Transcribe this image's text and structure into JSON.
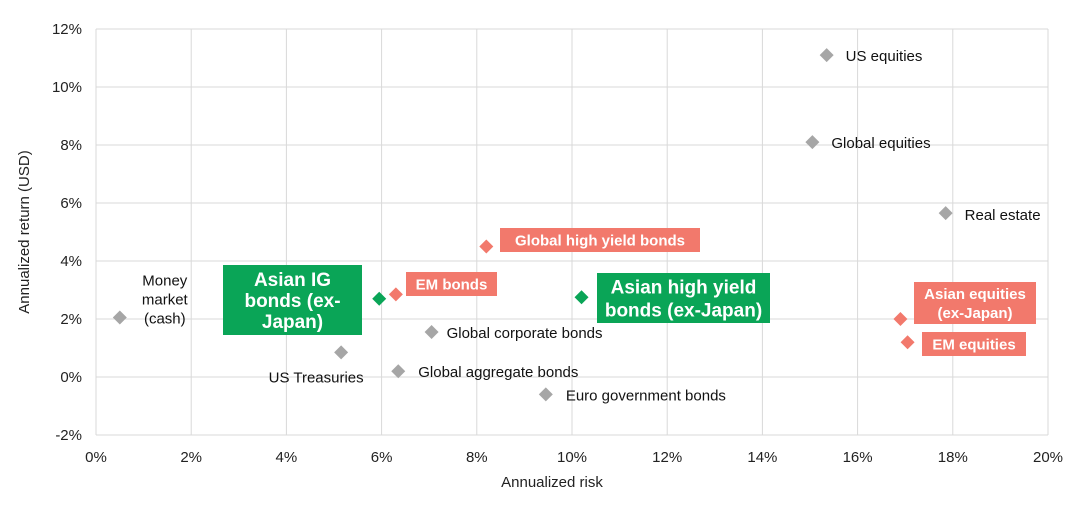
{
  "chart_data": {
    "type": "scatter",
    "xlabel": "Annualized risk",
    "ylabel": "Annualized return (USD)",
    "xlim": [
      0,
      20
    ],
    "ylim": [
      -2,
      12
    ],
    "x_ticks": [
      "0%",
      "2%",
      "4%",
      "6%",
      "8%",
      "10%",
      "12%",
      "14%",
      "16%",
      "18%",
      "20%"
    ],
    "y_ticks": [
      "-2%",
      "0%",
      "2%",
      "4%",
      "6%",
      "8%",
      "10%",
      "12%"
    ],
    "grid": true,
    "colors": {
      "gray": "#a6a6a6",
      "em": "#f2796c",
      "asian": "#0aa557",
      "grid": "#d9d9d9"
    },
    "points": [
      {
        "name": "US equities",
        "label_lines": [
          "US equities"
        ],
        "x": 15.35,
        "y": 11.1,
        "group": "gray"
      },
      {
        "name": "Global equities",
        "label_lines": [
          "Global equities"
        ],
        "x": 15.05,
        "y": 8.1,
        "group": "gray"
      },
      {
        "name": "Real estate",
        "label_lines": [
          "Real estate"
        ],
        "x": 17.85,
        "y": 5.65,
        "group": "gray"
      },
      {
        "name": "Money market (cash)",
        "label_lines": [
          "Money",
          "market",
          "(cash)"
        ],
        "x": 0.5,
        "y": 2.05,
        "group": "gray"
      },
      {
        "name": "US Treasuries",
        "label_lines": [
          "US Treasuries"
        ],
        "x": 5.15,
        "y": 0.85,
        "group": "gray"
      },
      {
        "name": "Global aggregate bonds",
        "label_lines": [
          "Global aggregate bonds"
        ],
        "x": 6.35,
        "y": 0.2,
        "group": "gray"
      },
      {
        "name": "Global corporate bonds",
        "label_lines": [
          "Global corporate bonds"
        ],
        "x": 7.05,
        "y": 1.55,
        "group": "gray"
      },
      {
        "name": "Euro government bonds",
        "label_lines": [
          "Euro government bonds"
        ],
        "x": 9.45,
        "y": -0.6,
        "group": "gray"
      },
      {
        "name": "Global high yield bonds",
        "label_lines": [
          "Global high yield bonds"
        ],
        "x": 8.2,
        "y": 4.5,
        "group": "em"
      },
      {
        "name": "EM bonds",
        "label_lines": [
          "EM bonds"
        ],
        "x": 6.3,
        "y": 2.85,
        "group": "em"
      },
      {
        "name": "Asian equities (ex-Japan)",
        "label_lines": [
          "Asian equities",
          "(ex-Japan)"
        ],
        "x": 16.9,
        "y": 2.0,
        "group": "em"
      },
      {
        "name": "EM equities",
        "label_lines": [
          "EM equities"
        ],
        "x": 17.05,
        "y": 1.2,
        "group": "em"
      },
      {
        "name": "Asian IG bonds (ex-Japan)",
        "label_lines": [
          "Asian IG",
          "bonds (ex-",
          "Japan)"
        ],
        "x": 5.95,
        "y": 2.7,
        "group": "asian"
      },
      {
        "name": "Asian high yield bonds (ex-Japan)",
        "label_lines": [
          "Asian high yield",
          "bonds (ex-Japan)"
        ],
        "x": 10.2,
        "y": 2.75,
        "group": "asian"
      }
    ]
  }
}
